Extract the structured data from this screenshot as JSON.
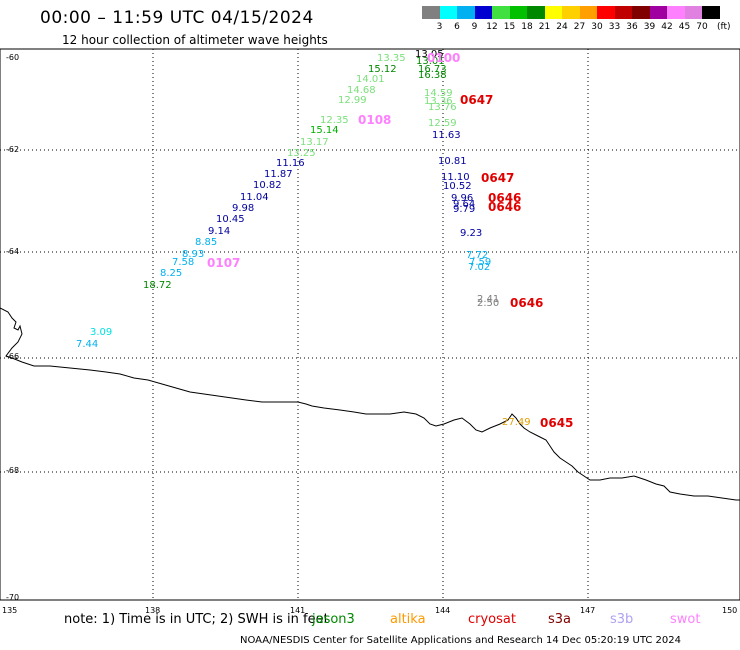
{
  "title": "00:00 – 11:59 UTC 04/15/2024",
  "subtitle": "12 hour collection of altimeter wave heights",
  "scale": {
    "labels": [
      "3",
      "6",
      "9",
      "12",
      "15",
      "18",
      "21",
      "24",
      "27",
      "30",
      "33",
      "36",
      "39",
      "42",
      "45",
      "70"
    ],
    "unit": "(ft)",
    "colors": [
      "#808080",
      "#00ffff",
      "#00b0f0",
      "#0000d0",
      "#40e040",
      "#00c000",
      "#008800",
      "#ffff00",
      "#ffd000",
      "#ffa000",
      "#ff0000",
      "#c00000",
      "#800000",
      "#a000a0",
      "#ff80ff",
      "#e080e0",
      "#000000"
    ]
  },
  "lat_labels": [
    "-60",
    "-62",
    "-64",
    "-66",
    "-68",
    "-70"
  ],
  "lon_labels": [
    "135",
    "138",
    "141",
    "144",
    "147",
    "150"
  ],
  "values": [
    {
      "t": "13.35",
      "c": "#7be07b"
    },
    {
      "t": "15.12",
      "c": "#008800"
    },
    {
      "t": "14.01",
      "c": "#7be07b"
    },
    {
      "t": "14.68",
      "c": "#7be07b"
    },
    {
      "t": "12.99",
      "c": "#7be07b"
    },
    {
      "t": "12.35",
      "c": "#7be07b"
    },
    {
      "t": "15.14",
      "c": "#00b000"
    },
    {
      "t": "13.17",
      "c": "#7be07b"
    },
    {
      "t": "13.25",
      "c": "#7be07b"
    },
    {
      "t": "11.16",
      "c": "#0000a0"
    },
    {
      "t": "11.87",
      "c": "#0000a0"
    },
    {
      "t": "10.82",
      "c": "#0000a0"
    },
    {
      "t": "11.04",
      "c": "#0000a0"
    },
    {
      "t": "9.98",
      "c": "#0000a0"
    },
    {
      "t": "10.45",
      "c": "#0000a0"
    },
    {
      "t": "9.14",
      "c": "#0000a0"
    },
    {
      "t": "8.85",
      "c": "#00b0f0"
    },
    {
      "t": "8.93",
      "c": "#00b0f0"
    },
    {
      "t": "7.58",
      "c": "#00b0f0"
    },
    {
      "t": "8.25",
      "c": "#00b0f0"
    },
    {
      "t": "18.72",
      "c": "#008800"
    },
    {
      "t": "3.09",
      "c": "#00e0e0"
    },
    {
      "t": "7.44",
      "c": "#00b0f0"
    },
    {
      "t": "13.05",
      "c": "#000000"
    },
    {
      "t": "13.01",
      "c": "#008800"
    },
    {
      "t": "16.73",
      "c": "#008800"
    },
    {
      "t": "16.38",
      "c": "#008800"
    },
    {
      "t": "14.59",
      "c": "#7be07b"
    },
    {
      "t": "13.36",
      "c": "#7be07b"
    },
    {
      "t": "13.76",
      "c": "#7be07b"
    },
    {
      "t": "12.59",
      "c": "#7be07b"
    },
    {
      "t": "11.63",
      "c": "#0000a0"
    },
    {
      "t": "10.81",
      "c": "#0000a0"
    },
    {
      "t": "11.10",
      "c": "#0000a0"
    },
    {
      "t": "10.52",
      "c": "#0000a0"
    },
    {
      "t": "9.96",
      "c": "#0000a0"
    },
    {
      "t": "9.64",
      "c": "#0000a0"
    },
    {
      "t": "9.79",
      "c": "#0000a0"
    },
    {
      "t": "9.23",
      "c": "#0000a0"
    },
    {
      "t": "7.72",
      "c": "#00b0f0"
    },
    {
      "t": "7.59",
      "c": "#00b0f0"
    },
    {
      "t": "7.02",
      "c": "#00b0f0"
    },
    {
      "t": "2.41",
      "c": "#808080"
    },
    {
      "t": "2.50",
      "c": "#808080"
    },
    {
      "t": "27.49",
      "c": "#e0a000"
    }
  ],
  "times": [
    {
      "t": "0108",
      "c": "#ff80ff"
    },
    {
      "t": "0107",
      "c": "#ff80ff"
    },
    {
      "t": "0647",
      "c": "#e00000"
    },
    {
      "t": "0647",
      "c": "#e00000"
    },
    {
      "t": "0646",
      "c": "#e00000"
    },
    {
      "t": "0646",
      "c": "#e00000"
    },
    {
      "t": "0646",
      "c": "#e00000"
    },
    {
      "t": "0645",
      "c": "#e00000"
    },
    {
      "t": "0100",
      "c": "#ff80ff"
    }
  ],
  "note": "note:  1) Time is in UTC; 2) SWH is in feet",
  "satellites": [
    {
      "name": "jason3",
      "color": "#008800"
    },
    {
      "name": "altika",
      "color": "#ff9900"
    },
    {
      "name": "cryosat",
      "color": "#e00000"
    },
    {
      "name": "s3a",
      "color": "#800000"
    },
    {
      "name": "s3b",
      "color": "#b0a0f0"
    },
    {
      "name": "swot",
      "color": "#ff80ff"
    }
  ],
  "footer": "NOAA/NESDIS Center for Satellite Applications and Research    14 Dec 05:20:19 UTC 2024"
}
